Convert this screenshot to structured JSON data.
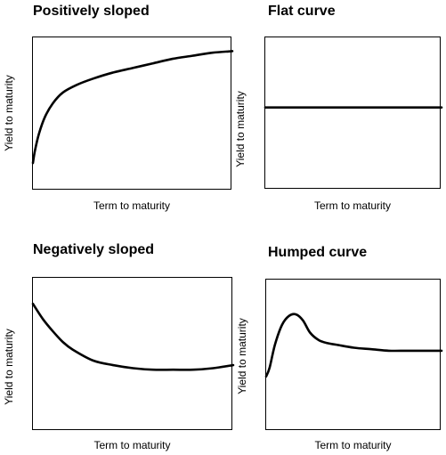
{
  "chart_data": [
    {
      "type": "line",
      "title": "Positively sloped",
      "xlabel": "Term to maturity",
      "ylabel": "Yield to maturity",
      "xlim": [
        0,
        1
      ],
      "ylim": [
        0,
        1
      ],
      "x": [
        0,
        0.01,
        0.03,
        0.06,
        0.1,
        0.15,
        0.22,
        0.3,
        0.4,
        0.5,
        0.6,
        0.7,
        0.8,
        0.9,
        1
      ],
      "series": [
        {
          "values": [
            0.18,
            0.26,
            0.37,
            0.48,
            0.57,
            0.64,
            0.69,
            0.73,
            0.77,
            0.8,
            0.83,
            0.86,
            0.88,
            0.9,
            0.91
          ]
        }
      ]
    },
    {
      "type": "line",
      "title": "Flat curve",
      "xlabel": "Term to maturity",
      "ylabel": "Yield to maturity",
      "xlim": [
        0,
        1
      ],
      "ylim": [
        0,
        1
      ],
      "x": [
        0,
        1
      ],
      "series": [
        {
          "values": [
            0.54,
            0.54
          ]
        }
      ]
    },
    {
      "type": "line",
      "title": "Negatively sloped",
      "xlabel": "Term to maturity",
      "ylabel": "Yield to maturity",
      "xlim": [
        0,
        1
      ],
      "ylim": [
        0,
        1
      ],
      "x": [
        0,
        0.05,
        0.1,
        0.15,
        0.2,
        0.3,
        0.4,
        0.5,
        0.6,
        0.7,
        0.8,
        0.9,
        1
      ],
      "series": [
        {
          "values": [
            0.83,
            0.73,
            0.65,
            0.58,
            0.53,
            0.46,
            0.43,
            0.41,
            0.4,
            0.4,
            0.4,
            0.41,
            0.43
          ]
        }
      ]
    },
    {
      "type": "line",
      "title": "Humped curve",
      "xlabel": "Term to maturity",
      "ylabel": "Yield to maturity",
      "xlim": [
        0,
        1
      ],
      "ylim": [
        0,
        1
      ],
      "x": [
        0,
        0.02,
        0.05,
        0.09,
        0.13,
        0.17,
        0.21,
        0.25,
        0.3,
        0.35,
        0.4,
        0.5,
        0.6,
        0.7,
        0.8,
        0.9,
        1
      ],
      "series": [
        {
          "values": [
            0.36,
            0.42,
            0.57,
            0.7,
            0.76,
            0.77,
            0.73,
            0.65,
            0.6,
            0.58,
            0.57,
            0.55,
            0.54,
            0.53,
            0.53,
            0.53,
            0.53
          ]
        }
      ]
    }
  ]
}
